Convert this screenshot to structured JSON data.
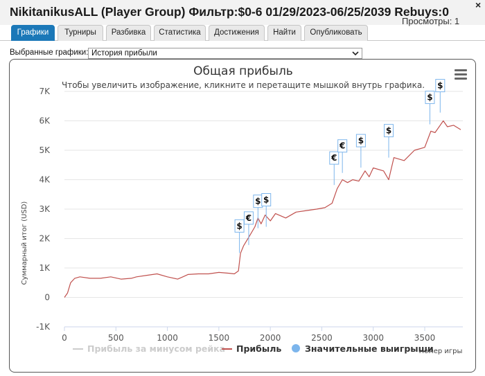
{
  "window": {
    "title": "NikitanikusALL (Player Group) Фильтр:$0-6 01/29/2023-06/25/2039 Rebuys:0",
    "views": "Просмотры: 1",
    "close_symbol": "×"
  },
  "tabs": [
    {
      "label": "Графики",
      "active": true
    },
    {
      "label": "Турниры",
      "active": false
    },
    {
      "label": "Разбивка",
      "active": false
    },
    {
      "label": "Статистика",
      "active": false
    },
    {
      "label": "Достижения",
      "active": false
    },
    {
      "label": "Найти",
      "active": false
    },
    {
      "label": "Опубликовать",
      "active": false
    }
  ],
  "selector": {
    "label": "Выбранные графики:",
    "value": "История прибыли"
  },
  "colors": {
    "accent": "#1b78b8",
    "profit_line": "#c0504d",
    "rake_line": "#cccccc",
    "big_win_marker": "#7cb5ec",
    "grid": "#e6e6e6"
  },
  "chart_data": {
    "type": "line",
    "title": "Общая прибыль",
    "subtitle": "Чтобы увеличить изображение, кликните и перетащите мышкой внутрь графика.",
    "xlabel": "Номер игры",
    "ylabel": "Суммарный итог (USD)",
    "xlim": [
      0,
      3870
    ],
    "ylim": [
      -1000,
      7000
    ],
    "x_ticks": [
      0,
      500,
      1000,
      1500,
      2000,
      2500,
      3000,
      3500
    ],
    "y_ticks": [
      -1000,
      0,
      1000,
      2000,
      3000,
      4000,
      5000,
      6000,
      7000
    ],
    "y_tick_labels": [
      "-1K",
      "0",
      "1K",
      "2K",
      "3K",
      "4K",
      "5K",
      "6K",
      "7K"
    ],
    "grid": "horizontal",
    "legend_position": "bottom",
    "series": [
      {
        "name": "Прибыль за минусом рейка",
        "visible": false,
        "x": [],
        "y": []
      },
      {
        "name": "Прибыль",
        "visible": true,
        "x": [
          0,
          30,
          60,
          100,
          150,
          250,
          350,
          450,
          550,
          650,
          700,
          800,
          900,
          1000,
          1100,
          1150,
          1200,
          1300,
          1400,
          1500,
          1600,
          1650,
          1690,
          1710,
          1740,
          1800,
          1850,
          1880,
          1910,
          1950,
          2000,
          2050,
          2150,
          2250,
          2350,
          2450,
          2530,
          2600,
          2650,
          2700,
          2750,
          2800,
          2860,
          2920,
          2960,
          3000,
          3100,
          3150,
          3200,
          3300,
          3400,
          3500,
          3560,
          3600,
          3680,
          3720,
          3780,
          3850
        ],
        "y": [
          0,
          150,
          500,
          650,
          700,
          650,
          650,
          700,
          620,
          650,
          700,
          750,
          800,
          700,
          620,
          700,
          780,
          800,
          800,
          850,
          820,
          800,
          900,
          1500,
          1750,
          2100,
          2400,
          2700,
          2500,
          2800,
          2600,
          2850,
          2700,
          2900,
          2950,
          3000,
          3050,
          3200,
          3700,
          4000,
          3900,
          4000,
          3950,
          4300,
          4100,
          4400,
          4300,
          4000,
          4750,
          4650,
          5000,
          5100,
          5650,
          5600,
          6000,
          5800,
          5850,
          5700
        ]
      }
    ],
    "big_wins": [
      {
        "x": 1700,
        "y": 1510,
        "label": "$"
      },
      {
        "x": 1790,
        "y": 1780,
        "label": "€"
      },
      {
        "x": 1880,
        "y": 2350,
        "label": "$"
      },
      {
        "x": 1960,
        "y": 2400,
        "label": "$"
      },
      {
        "x": 2620,
        "y": 3820,
        "label": "€"
      },
      {
        "x": 2700,
        "y": 4230,
        "label": "€"
      },
      {
        "x": 2880,
        "y": 4410,
        "label": "$"
      },
      {
        "x": 3150,
        "y": 4750,
        "label": "$"
      },
      {
        "x": 3550,
        "y": 5880,
        "label": "$"
      },
      {
        "x": 3650,
        "y": 6280,
        "label": "$"
      }
    ],
    "big_wins_name": "Значительные выигрыши"
  }
}
